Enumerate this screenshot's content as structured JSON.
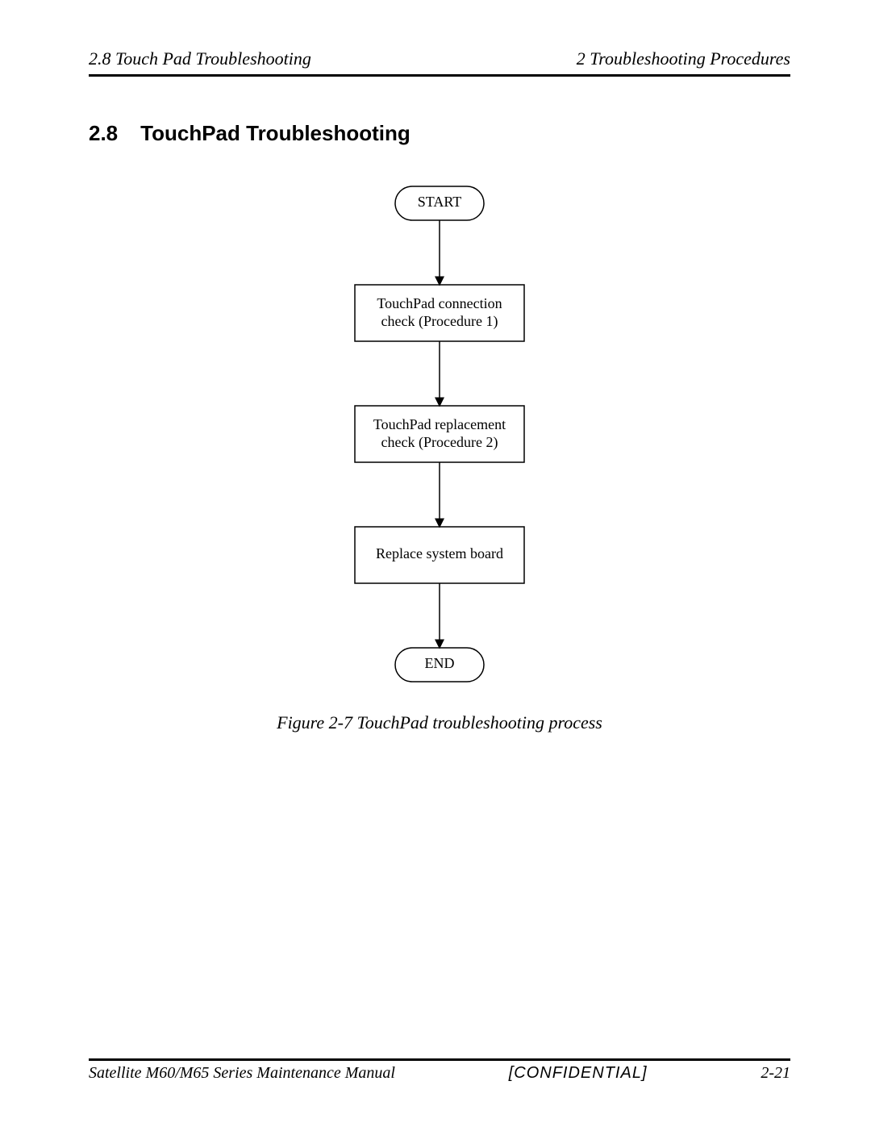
{
  "header": {
    "left": "2.8 Touch Pad Troubleshooting",
    "right": "2 Troubleshooting Procedures"
  },
  "section": {
    "number": "2.8",
    "title": "TouchPad Troubleshooting"
  },
  "flowchart": {
    "type": "flowchart",
    "background_color": "#ffffff",
    "stroke_color": "#000000",
    "stroke_width": 1.5,
    "node_fontsize": 18,
    "terminal_width": 110,
    "terminal_height": 42,
    "process_width": 210,
    "process_height": 70,
    "arrow_length": 80,
    "arrow_head_size": 8,
    "nodes": {
      "start": {
        "type": "terminal",
        "label": "START"
      },
      "proc1": {
        "type": "process",
        "line1": "TouchPad connection",
        "line2": "check (Procedure 1)"
      },
      "proc2": {
        "type": "process",
        "line1": "TouchPad replacement",
        "line2": "check (Procedure 2)"
      },
      "proc3": {
        "type": "process",
        "line1": "Replace system board",
        "line2": ""
      },
      "end": {
        "type": "terminal",
        "label": "END"
      }
    }
  },
  "caption": "Figure 2-7  TouchPad troubleshooting process",
  "footer": {
    "left": "Satellite M60/M65 Series Maintenance Manual",
    "center": "[CONFIDENTIAL]",
    "right": "2-21"
  }
}
